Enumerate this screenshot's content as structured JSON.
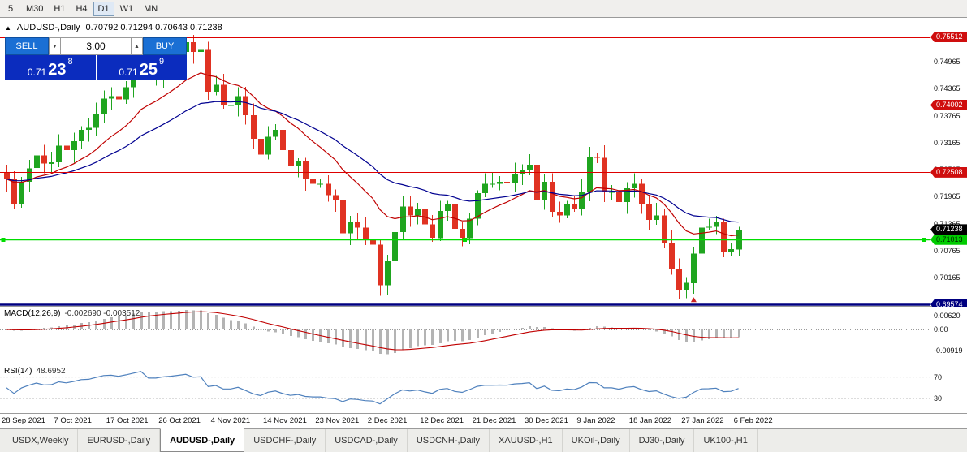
{
  "toolbar": {
    "timeframes": [
      "5",
      "M30",
      "H1",
      "H4",
      "D1",
      "W1",
      "MN"
    ],
    "active": "D1"
  },
  "chart": {
    "title": "AUDUSD-,Daily",
    "icon_glyph": "▲",
    "ohlc_text": "0.70792 0.71294 0.70643 0.71238"
  },
  "trade_panel": {
    "sell_label": "SELL",
    "buy_label": "BUY",
    "volume": "3.00",
    "volume_down_glyph": "▼",
    "volume_up_glyph": "▲",
    "sell_price": {
      "big": "0.71",
      "digits": "23",
      "sup": "8"
    },
    "buy_price": {
      "big": "0.71",
      "digits": "25",
      "sup": "9"
    }
  },
  "colors": {
    "up_candle": "#1fa51f",
    "down_candle": "#e03222",
    "ma_fast": "#c00000",
    "ma_slow": "#000090",
    "macd_histogram": "#b4b4b4",
    "macd_signal": "#c00000",
    "rsi_line": "#4f81bd"
  },
  "chart_data": {
    "type": "candlestick",
    "symbol": "AUDUSD-,Daily",
    "first_open": 0.725,
    "closes": [
      0.7236,
      0.718,
      0.723,
      0.726,
      0.7288,
      0.727,
      0.7273,
      0.731,
      0.73,
      0.732,
      0.7345,
      0.735,
      0.738,
      0.7415,
      0.742,
      0.7413,
      0.744,
      0.7475,
      0.7518,
      0.7465,
      0.7465,
      0.749,
      0.75,
      0.7518,
      0.754,
      0.7518,
      0.7525,
      0.743,
      0.7445,
      0.74,
      0.74,
      0.742,
      0.7378,
      0.7325,
      0.729,
      0.733,
      0.7345,
      0.73,
      0.7265,
      0.7275,
      0.7235,
      0.7225,
      0.7225,
      0.72,
      0.7188,
      0.7115,
      0.714,
      0.7128,
      0.71,
      0.709,
      0.7,
      0.7053,
      0.7118,
      0.7175,
      0.7155,
      0.717,
      0.7135,
      0.7105,
      0.7165,
      0.718,
      0.7125,
      0.7105,
      0.7148,
      0.7205,
      0.7225,
      0.7225,
      0.723,
      0.7228,
      0.7248,
      0.7255,
      0.7268,
      0.719,
      0.723,
      0.7163,
      0.7155,
      0.718,
      0.717,
      0.7208,
      0.7285,
      0.7283,
      0.7207,
      0.7207,
      0.7185,
      0.7215,
      0.7225,
      0.718,
      0.7145,
      0.7155,
      0.7095,
      0.7035,
      0.699,
      0.7005,
      0.707,
      0.7128,
      0.713,
      0.714,
      0.7075,
      0.708,
      0.7124
    ],
    "last_ohlc": [
      0.70792,
      0.71294,
      0.70643,
      0.71238
    ],
    "peak": {
      "index": 24,
      "high": 0.75512
    },
    "trough": {
      "index": 90,
      "low": 0.6968
    },
    "price_top": 0.7594,
    "price_bottom": 0.6954,
    "axis_ticks": [
      "0.74965",
      "0.74365",
      "0.73765",
      "0.73165",
      "0.72565",
      "0.71965",
      "0.71365",
      "0.70765",
      "0.70165",
      "0.69565"
    ],
    "levels": [
      {
        "price": 0.75512,
        "label": "0.75512",
        "color": "#dd0000",
        "width": 1,
        "badge_bg": "#cf0e0e",
        "badge_fg": "#ffffff",
        "handles": false
      },
      {
        "price": 0.74002,
        "label": "0.74002",
        "color": "#dd0000",
        "width": 1,
        "badge_bg": "#cf0e0e",
        "badge_fg": "#ffffff",
        "handles": false
      },
      {
        "price": 0.72508,
        "label": "0.72508",
        "color": "#dd0000",
        "width": 1,
        "badge_bg": "#cf0e0e",
        "badge_fg": "#ffffff",
        "handles": false
      },
      {
        "price": 0.71013,
        "label": "0.71013",
        "color": "#00dd00",
        "width": 1.5,
        "badge_bg": "#00cc00",
        "badge_fg": "#002200",
        "handles": true
      },
      {
        "price": 0.69574,
        "label": "0.69574",
        "color": "#000080",
        "width": 2.5,
        "badge_bg": "#000080",
        "badge_fg": "#ffffff",
        "handles": false
      }
    ],
    "current_price": {
      "value": 0.71238,
      "label": "0.71238",
      "badge_bg": "#000000",
      "badge_fg": "#ffffff"
    },
    "markers": [
      {
        "index": 92,
        "color": "#cc2222"
      }
    ]
  },
  "macd": {
    "label": "MACD(12,26,9)",
    "values": "-0.002690 -0.003512",
    "axis": [
      "0.00620",
      "0.00",
      "-0.00919"
    ]
  },
  "rsi": {
    "label": "RSI(14)",
    "value": "48.6952",
    "axis": [
      "70",
      "30"
    ]
  },
  "date_axis": {
    "labels": [
      "28 Sep 2021",
      "7 Oct 2021",
      "17 Oct 2021",
      "26 Oct 2021",
      "4 Nov 2021",
      "14 Nov 2021",
      "23 Nov 2021",
      "2 Dec 2021",
      "12 Dec 2021",
      "21 Dec 2021",
      "30 Dec 2021",
      "9 Jan 2022",
      "18 Jan 2022",
      "27 Jan 2022",
      "6 Feb 2022"
    ]
  },
  "tabs": {
    "active_index": 2,
    "items": [
      "USDX,Weekly",
      "EURUSD-,Daily",
      "AUDUSD-,Daily",
      "USDCHF-,Daily",
      "USDCAD-,Daily",
      "USDCNH-,Daily",
      "XAUUSD-,H1",
      "UKOil-,Daily",
      "DJ30-,Daily",
      "UK100-,H1"
    ]
  }
}
